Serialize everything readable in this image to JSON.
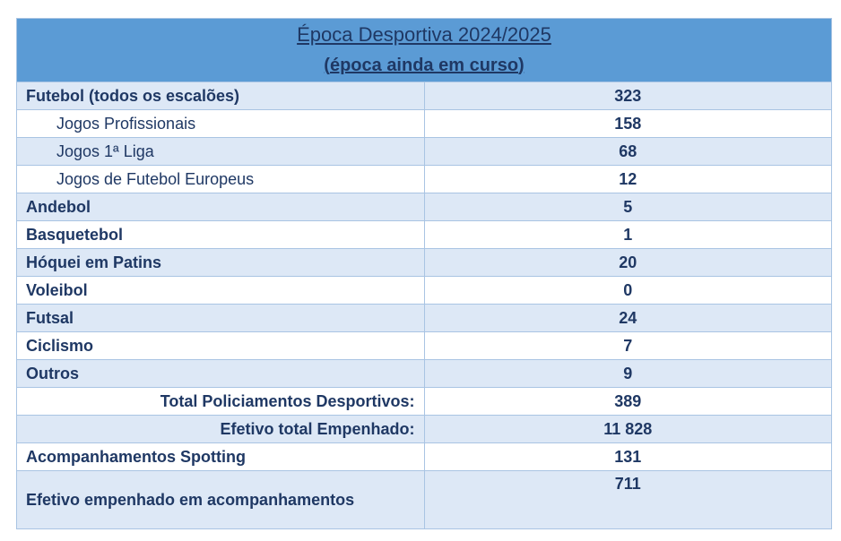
{
  "header": {
    "title": "Época Desportiva 2024/2025",
    "subtitle_open": "(",
    "subtitle": "época ainda em curso",
    "subtitle_close": ")"
  },
  "rows": [
    {
      "label": "Futebol (todos os escalões)",
      "value": "323"
    },
    {
      "label": "Jogos Profissionais",
      "value": "158"
    },
    {
      "label": "Jogos 1ª Liga",
      "value": "68"
    },
    {
      "label": "Jogos de Futebol Europeus",
      "value": "12"
    },
    {
      "label": "Andebol",
      "value": "5"
    },
    {
      "label": "Basquetebol",
      "value": "1"
    },
    {
      "label": "Hóquei em Patins",
      "value": "20"
    },
    {
      "label": "Voleibol",
      "value": "0"
    },
    {
      "label": "Futsal",
      "value": "24"
    },
    {
      "label": "Ciclismo",
      "value": "7"
    },
    {
      "label": "Outros",
      "value": "9"
    },
    {
      "label": "Total Policiamentos Desportivos:",
      "value": "389"
    },
    {
      "label": "Efetivo total Empenhado:",
      "value": "11 828"
    },
    {
      "label": "Acompanhamentos Spotting",
      "value": "131"
    },
    {
      "label": "Efetivo empenhado em acompanhamentos",
      "value": "711"
    }
  ]
}
